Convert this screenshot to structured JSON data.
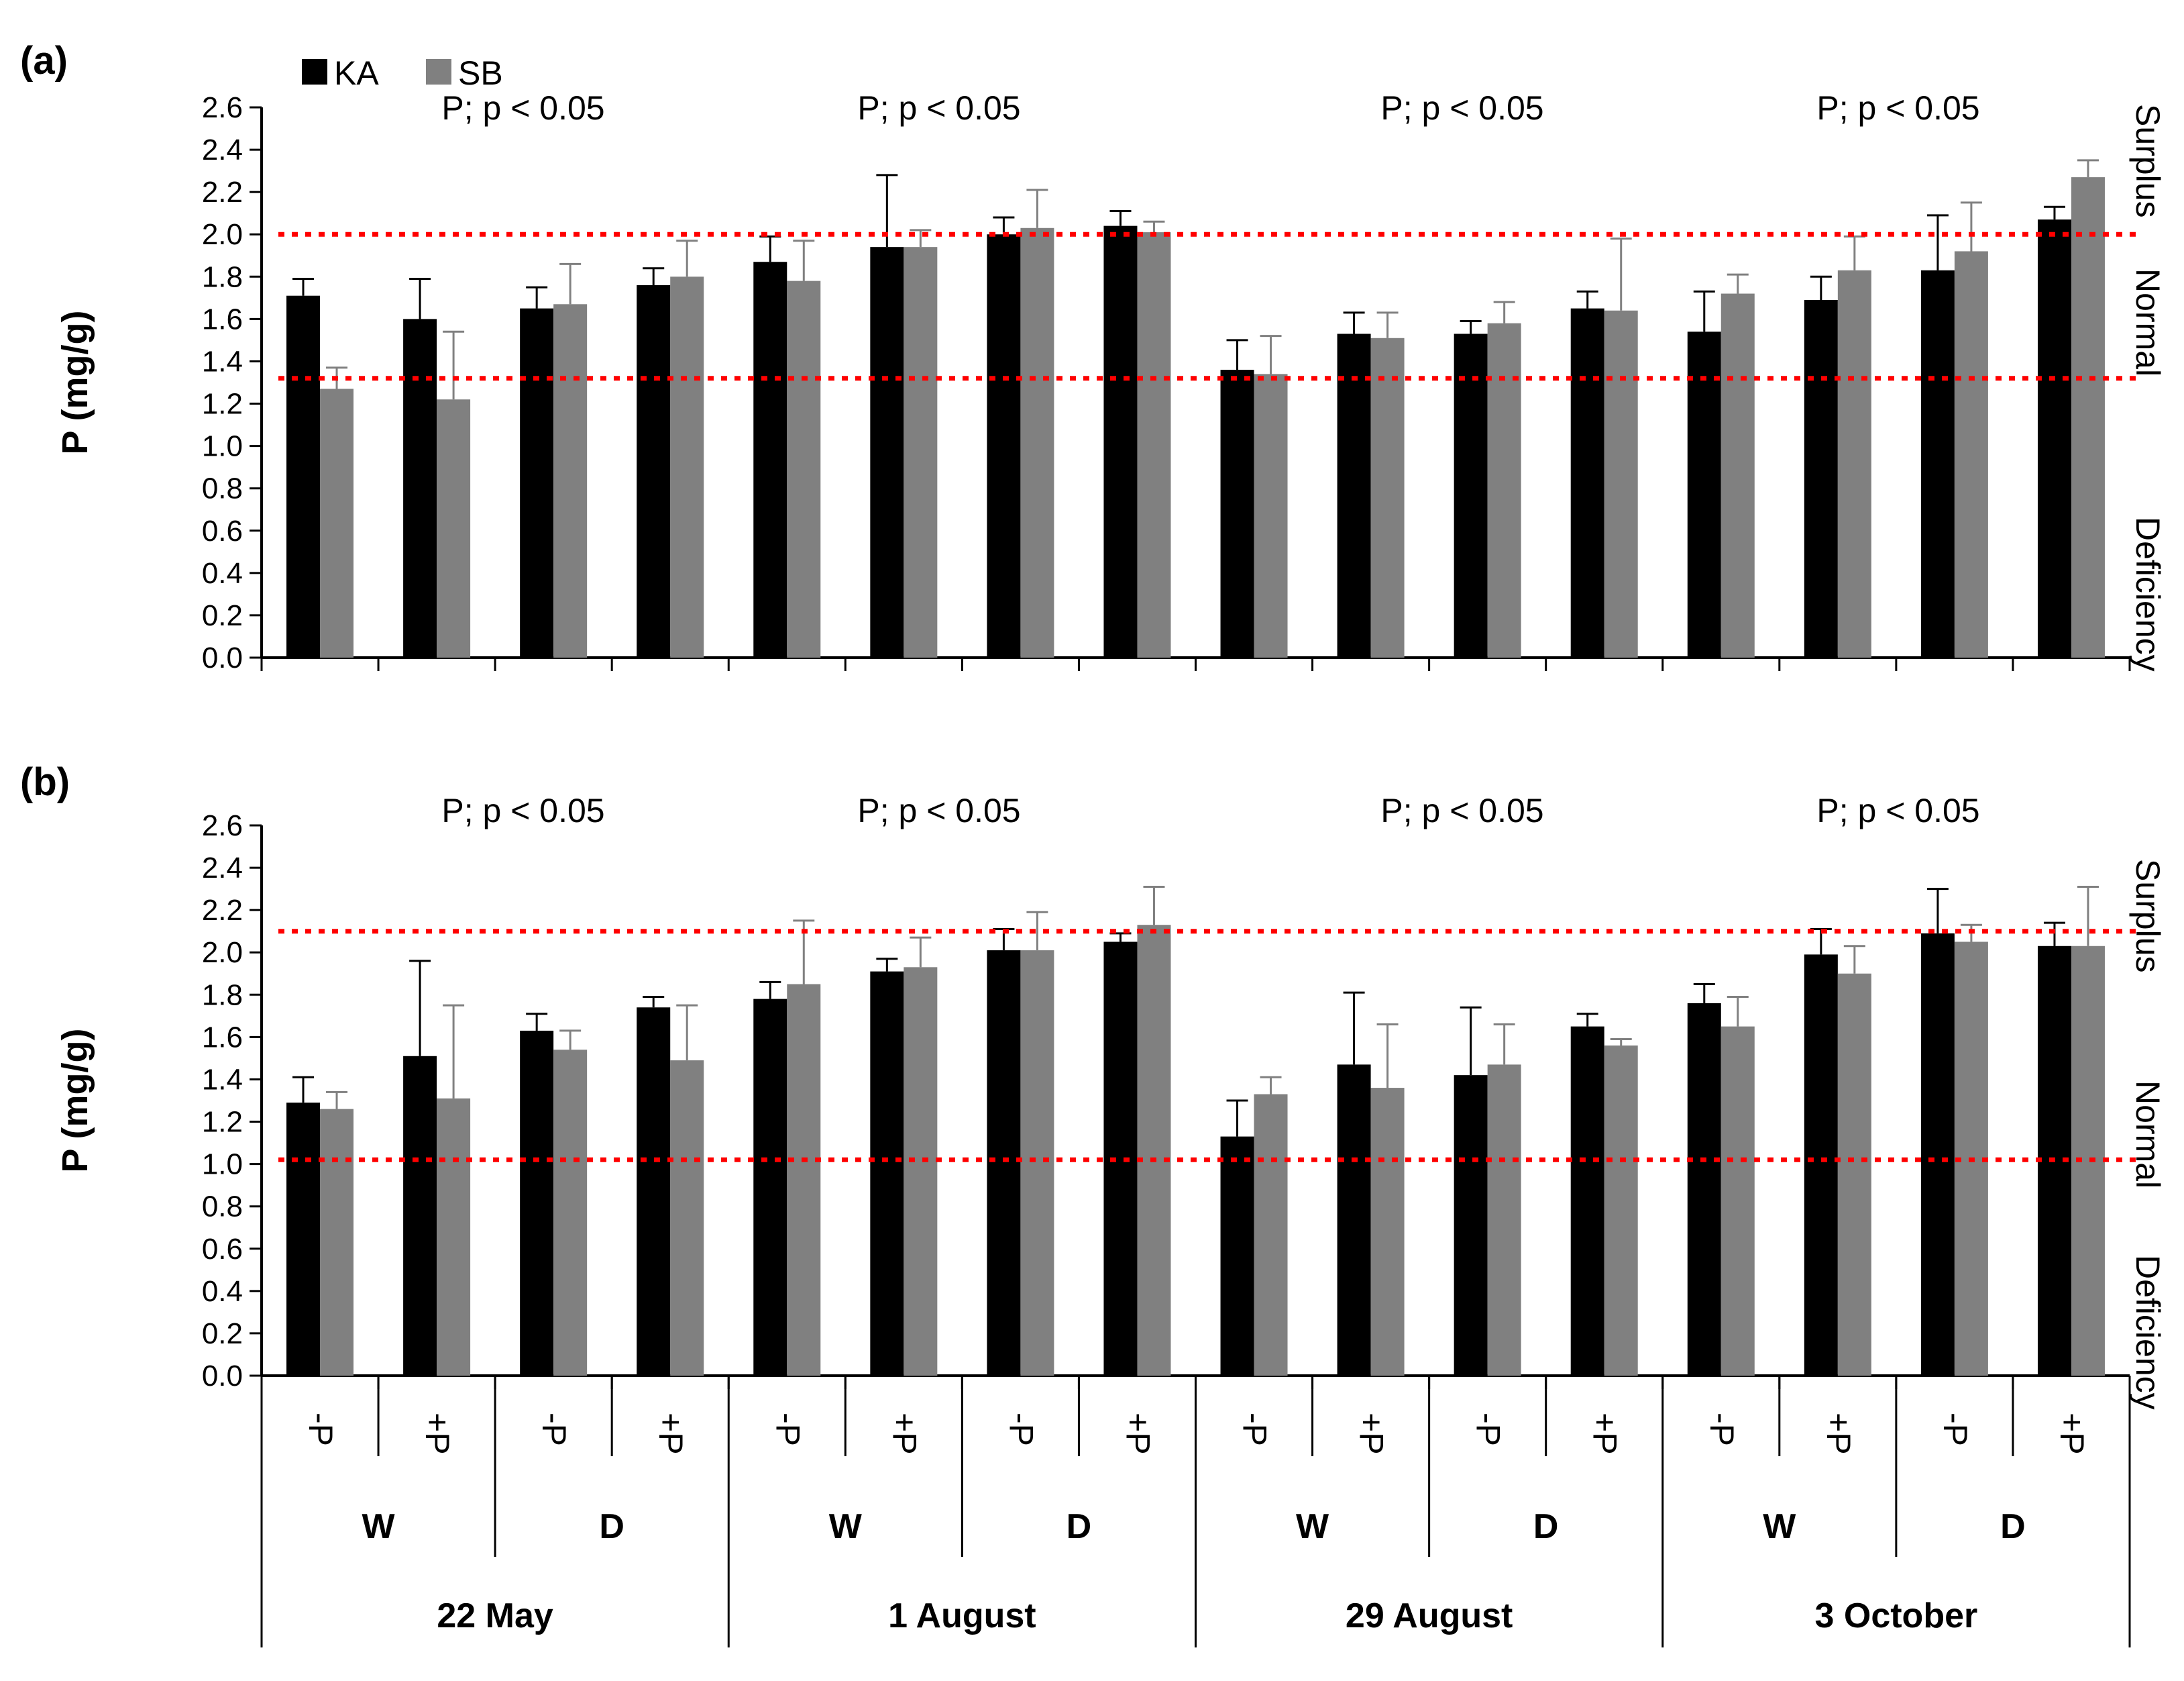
{
  "chart_data": [
    {
      "panel_label": "(a)",
      "type": "bar",
      "ylabel": "P (mg/g)",
      "ylim": [
        0,
        2.6
      ],
      "yticks": [
        "0.0",
        "0.2",
        "0.4",
        "0.6",
        "0.8",
        "1.0",
        "1.2",
        "1.4",
        "1.6",
        "1.8",
        "2.0",
        "2.2",
        "2.4",
        "2.6"
      ],
      "categories": [
        "-P",
        "+P",
        "-P",
        "+P",
        "-P",
        "+P",
        "-P",
        "+P",
        "-P",
        "+P",
        "-P",
        "+P",
        "-P",
        "+P",
        "-P",
        "+P"
      ],
      "series": [
        {
          "name": "KA",
          "color": "#000000",
          "values": [
            1.71,
            1.6,
            1.65,
            1.76,
            1.87,
            1.94,
            2.0,
            2.04,
            1.36,
            1.53,
            1.53,
            1.65,
            1.54,
            1.69,
            1.83,
            2.07
          ],
          "errors": [
            0.08,
            0.19,
            0.1,
            0.08,
            0.12,
            0.34,
            0.08,
            0.07,
            0.14,
            0.1,
            0.06,
            0.08,
            0.19,
            0.11,
            0.26,
            0.06
          ]
        },
        {
          "name": "SB",
          "color": "#808080",
          "values": [
            1.27,
            1.22,
            1.67,
            1.8,
            1.78,
            1.94,
            2.03,
            2.01,
            1.34,
            1.51,
            1.58,
            1.64,
            1.72,
            1.83,
            1.92,
            2.27
          ],
          "errors": [
            0.1,
            0.32,
            0.19,
            0.17,
            0.19,
            0.08,
            0.18,
            0.05,
            0.18,
            0.12,
            0.1,
            0.34,
            0.09,
            0.16,
            0.23,
            0.08
          ]
        }
      ],
      "thresholds": [
        2.0,
        1.32
      ],
      "annotations": [
        "P; p < 0.05",
        "P; p < 0.05",
        "P; p < 0.05",
        "P; p < 0.05"
      ],
      "zones": [
        "Surplus",
        "Normal",
        "Deficiency"
      ]
    },
    {
      "panel_label": "(b)",
      "type": "bar",
      "ylabel": "P (mg/g)",
      "ylim": [
        0,
        2.6
      ],
      "yticks": [
        "0.0",
        "0.2",
        "0.4",
        "0.6",
        "0.8",
        "1.0",
        "1.2",
        "1.4",
        "1.6",
        "1.8",
        "2.0",
        "2.2",
        "2.4",
        "2.6"
      ],
      "categories": [
        "-P",
        "+P",
        "-P",
        "+P",
        "-P",
        "+P",
        "-P",
        "+P",
        "-P",
        "+P",
        "-P",
        "+P",
        "-P",
        "+P",
        "-P",
        "+P"
      ],
      "series": [
        {
          "name": "KA",
          "color": "#000000",
          "values": [
            1.29,
            1.51,
            1.63,
            1.74,
            1.78,
            1.91,
            2.01,
            2.05,
            1.13,
            1.47,
            1.42,
            1.65,
            1.76,
            1.99,
            2.09,
            2.03
          ],
          "errors": [
            0.12,
            0.45,
            0.08,
            0.05,
            0.08,
            0.06,
            0.1,
            0.04,
            0.17,
            0.34,
            0.32,
            0.06,
            0.09,
            0.12,
            0.21,
            0.11
          ]
        },
        {
          "name": "SB",
          "color": "#808080",
          "values": [
            1.26,
            1.31,
            1.54,
            1.49,
            1.85,
            1.93,
            2.01,
            2.13,
            1.33,
            1.36,
            1.47,
            1.56,
            1.65,
            1.9,
            2.05,
            2.03
          ],
          "errors": [
            0.08,
            0.44,
            0.09,
            0.26,
            0.3,
            0.14,
            0.18,
            0.18,
            0.08,
            0.3,
            0.19,
            0.03,
            0.14,
            0.13,
            0.08,
            0.28
          ]
        }
      ],
      "thresholds": [
        2.1,
        1.02
      ],
      "annotations": [
        "P; p < 0.05",
        "P; p < 0.05",
        "P; p < 0.05",
        "P; p < 0.05"
      ],
      "zones": [
        "Surplus",
        "Normal",
        "Deficiency"
      ]
    }
  ],
  "legend": [
    {
      "name": "KA",
      "color": "#000000"
    },
    {
      "name": "SB",
      "color": "#808080"
    }
  ],
  "x_groups": [
    "W",
    "D",
    "W",
    "D",
    "W",
    "D",
    "W",
    "D"
  ],
  "x_dates": [
    "22 May",
    "1 August",
    "29 August",
    "3 October"
  ],
  "colors": {
    "threshold": "#ff0000",
    "axis": "#000000"
  }
}
